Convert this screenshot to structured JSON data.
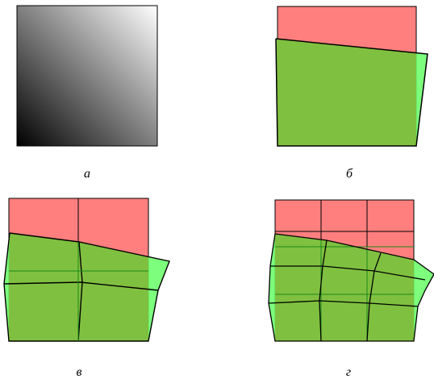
{
  "labels": {
    "a": "а",
    "b": "б",
    "c": "в",
    "d": "г"
  },
  "colors": {
    "reference": "#ff7f7f",
    "warped": "#66ff66",
    "overlap": "#80c040",
    "gradient_light": "#ffffff",
    "gradient_dark": "#000000",
    "stroke": "#000000",
    "warped_stroke": "#1a8a1a"
  },
  "panels": [
    {
      "id": "a",
      "label": "а",
      "grid": 0
    },
    {
      "id": "b",
      "label": "б",
      "grid": 1
    },
    {
      "id": "c",
      "label": "в",
      "grid": 2
    },
    {
      "id": "d",
      "label": "г",
      "grid": 3
    }
  ]
}
